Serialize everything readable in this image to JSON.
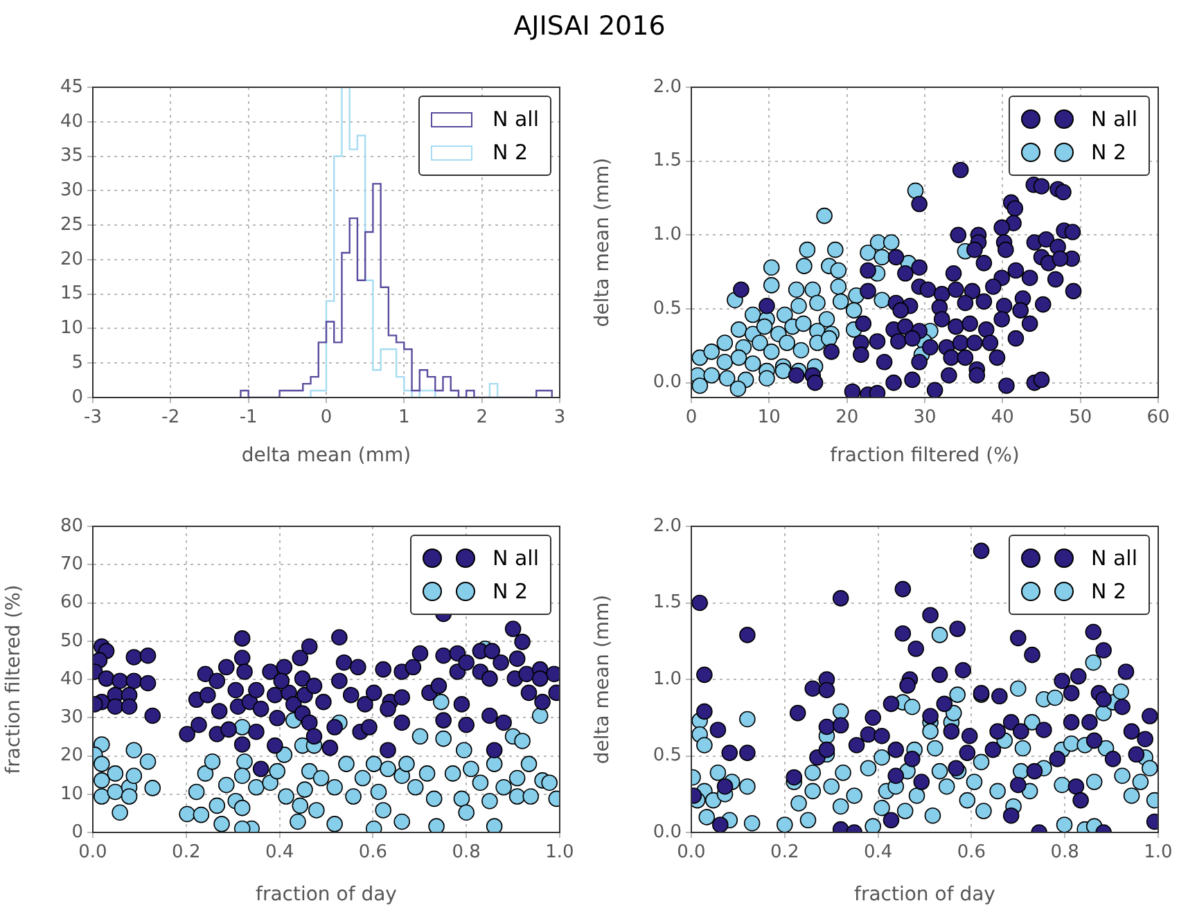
{
  "chart_data": [
    {
      "type": "histogram",
      "title": "AJISAI 2016",
      "xlabel": "delta mean (mm)",
      "xlim": [
        -3,
        3
      ],
      "xticks": [
        -3,
        -2,
        -1,
        0,
        1,
        2,
        3
      ],
      "ylim": [
        0,
        45
      ],
      "yticks": [
        0,
        5,
        10,
        15,
        20,
        25,
        30,
        35,
        40,
        45
      ],
      "grid": true,
      "legend": "top right",
      "bins": [
        -1.1,
        -1,
        -0.9,
        -0.8,
        -0.7,
        -0.6,
        -0.5,
        -0.4,
        -0.3,
        -0.2,
        -0.1,
        0,
        0.1,
        0.2,
        0.3,
        0.4,
        0.5,
        0.6,
        0.7,
        0.8,
        0.9,
        1,
        1.1,
        1.2,
        1.3,
        1.4,
        1.5,
        1.6,
        1.7,
        1.8,
        1.9,
        2,
        2.1,
        2.2,
        2.3,
        2.4,
        2.5,
        2.6,
        2.7,
        2.8,
        2.9
      ],
      "series": [
        {
          "name": "N all",
          "color": "#5b4b9e",
          "values": [
            1,
            0,
            0,
            0,
            0,
            1,
            1,
            1,
            2,
            3,
            8,
            11,
            8,
            21,
            26,
            17,
            24,
            31,
            16,
            9,
            8,
            7,
            1,
            4,
            3,
            1,
            3,
            1,
            0,
            1,
            0,
            0,
            0,
            0,
            0,
            0,
            0,
            0,
            1,
            1
          ]
        },
        {
          "name": "N 2",
          "color": "#a6dcf2",
          "values": [
            0,
            0,
            0,
            0,
            0,
            0,
            0,
            0,
            0,
            1,
            1,
            14,
            35,
            45,
            36,
            38,
            17,
            4,
            7,
            7,
            3,
            1,
            0,
            1,
            1,
            0,
            0,
            0,
            0,
            0,
            0,
            0,
            2,
            0,
            0,
            0,
            0,
            0,
            0,
            0
          ]
        }
      ]
    },
    {
      "type": "scatter",
      "xlabel": "fraction filtered (%)",
      "ylabel": "delta mean (mm)",
      "xlim": [
        0,
        60
      ],
      "xticks": [
        0,
        10,
        20,
        30,
        40,
        50,
        60
      ],
      "ylim": [
        -0.1,
        2.0
      ],
      "yticks": [
        {
          "value": 0,
          "label": "0.0"
        },
        {
          "value": 0.5,
          "label": "0.5"
        },
        {
          "value": 1,
          "label": "1.0"
        },
        {
          "value": 1.5,
          "label": "1.5"
        },
        {
          "value": 2,
          "label": "2.0"
        }
      ],
      "grid": true,
      "legend": "top right",
      "marker": "circle",
      "series": [
        {
          "name": "N all",
          "color": "#2c1f80",
          "x": [
            34.6,
            44.0,
            45.0,
            47.1,
            47.8,
            29.3,
            41.1,
            41.6,
            41.4,
            39.9,
            47.9,
            49.0,
            34.3,
            36.9,
            36.9,
            40.2,
            40.4,
            44.1,
            45.6,
            36.4,
            47.1,
            45.0,
            45.9,
            48.9,
            47.4,
            26.3,
            22.7,
            27.5,
            29.3,
            33.7,
            37.6,
            39.9,
            41.7,
            43.5,
            46.8,
            6.4,
            9.7,
            49.1,
            45.2,
            29.3,
            30.4,
            32.2,
            34.0,
            36.1,
            38.8,
            42.6,
            26.3,
            28.1,
            26.9,
            31.9,
            35.2,
            37.6,
            40.2,
            42.3,
            43.5,
            22.7,
            22.1,
            21.8,
            23.9,
            26.0,
            27.5,
            29.3,
            32.2,
            34.0,
            35.8,
            37.9,
            39.9,
            41.7,
            26.6,
            28.4,
            30.7,
            32.8,
            34.6,
            36.4,
            38.4,
            39.3,
            29.3,
            33.4,
            35.2,
            36.7,
            24.8,
            18.0,
            21.8,
            13.5,
            15.6,
            15.9,
            33.1,
            36.7,
            40.5,
            44.1,
            45.0,
            26.0,
            28.4,
            31.3,
            20.7,
            22.7,
            23.9
          ],
          "values": [
            1.44,
            1.34,
            1.33,
            1.31,
            1.29,
            1.21,
            1.22,
            1.18,
            1.08,
            1.05,
            1.03,
            1.02,
            1.0,
            1.0,
            0.95,
            0.95,
            0.9,
            0.95,
            0.97,
            0.9,
            0.92,
            0.85,
            0.81,
            0.84,
            0.84,
            0.85,
            0.76,
            0.74,
            0.78,
            0.74,
            0.81,
            0.71,
            0.76,
            0.71,
            0.7,
            0.63,
            0.52,
            0.62,
            0.53,
            0.65,
            0.63,
            0.6,
            0.63,
            0.62,
            0.65,
            0.57,
            0.54,
            0.52,
            0.49,
            0.51,
            0.54,
            0.55,
            0.52,
            0.49,
            0.4,
            0.62,
            0.4,
            0.27,
            0.28,
            0.36,
            0.38,
            0.35,
            0.43,
            0.38,
            0.4,
            0.36,
            0.43,
            0.3,
            0.28,
            0.3,
            0.24,
            0.24,
            0.27,
            0.27,
            0.27,
            0.17,
            0.14,
            0.17,
            0.17,
            0.09,
            0.14,
            0.21,
            0.19,
            0.05,
            0.05,
            0.0,
            0.05,
            0.05,
            -0.02,
            0.0,
            0.02,
            0.0,
            0.02,
            -0.05,
            -0.06,
            -0.08,
            -0.07
          ]
        },
        {
          "name": "N 2",
          "color": "#87ceeb",
          "x": [
            17.1,
            28.8,
            14.9,
            18.5,
            10.3,
            14.5,
            17.7,
            18.9,
            22.7,
            24.0,
            25.7,
            24.5,
            27.9,
            23.9,
            35.2,
            5.6,
            10.3,
            13.5,
            15.6,
            18.9,
            21.2,
            24.5,
            7.9,
            9.7,
            12.0,
            13.8,
            16.2,
            17.4,
            19.2,
            20.9,
            6.1,
            7.9,
            9.4,
            11.2,
            13.0,
            14.4,
            16.2,
            18.0,
            20.9,
            4.3,
            6.7,
            8.8,
            10.3,
            12.3,
            14.1,
            16.2,
            17.7,
            30.7,
            29.9,
            29.6,
            1.1,
            2.6,
            4.3,
            6.1,
            7.9,
            9.7,
            11.8,
            13.8,
            15.9,
            0.8,
            2.6,
            4.6,
            7.0,
            9.7,
            1.1,
            6.0,
            11.8
          ],
          "values": [
            1.13,
            1.3,
            0.9,
            0.9,
            0.78,
            0.79,
            0.79,
            0.76,
            0.88,
            0.95,
            0.95,
            0.85,
            0.81,
            0.74,
            0.89,
            0.56,
            0.66,
            0.63,
            0.63,
            0.65,
            0.59,
            0.56,
            0.46,
            0.43,
            0.46,
            0.52,
            0.54,
            0.43,
            0.55,
            0.49,
            0.36,
            0.33,
            0.38,
            0.33,
            0.38,
            0.4,
            0.35,
            0.33,
            0.36,
            0.27,
            0.24,
            0.27,
            0.21,
            0.27,
            0.22,
            0.27,
            0.3,
            0.35,
            0.28,
            0.19,
            0.17,
            0.21,
            0.14,
            0.17,
            0.13,
            0.08,
            0.11,
            0.08,
            0.11,
            0.05,
            0.05,
            0.03,
            0.02,
            0.03,
            -0.02,
            -0.04,
            0.08
          ]
        }
      ]
    },
    {
      "type": "scatter",
      "xlabel": "fraction of day",
      "ylabel": "fraction filtered (%)",
      "xlim": [
        0,
        1
      ],
      "xticks": [
        {
          "value": 0,
          "label": "0.0"
        },
        {
          "value": 0.2,
          "label": "0.2"
        },
        {
          "value": 0.4,
          "label": "0.4"
        },
        {
          "value": 0.6,
          "label": "0.6"
        },
        {
          "value": 0.8,
          "label": "0.8"
        },
        {
          "value": 1,
          "label": "1.0"
        }
      ],
      "ylim": [
        0,
        80
      ],
      "yticks": [
        0,
        10,
        20,
        30,
        40,
        50,
        60,
        70,
        80
      ],
      "grid": true,
      "legend": "top right",
      "marker": "circle",
      "series": [
        {
          "name": "N all",
          "color": "#2c1f80",
          "x": [
            0.019,
            0.029,
            0.014,
            0.004,
            0.029,
            0.058,
            0.088,
            0.118,
            0.088,
            0.118,
            0.019,
            0.048,
            0.078,
            0.048,
            0.078,
            0.004,
            0.128,
            0.202,
            0.222,
            0.227,
            0.241,
            0.246,
            0.266,
            0.271,
            0.266,
            0.286,
            0.291,
            0.32,
            0.32,
            0.325,
            0.311,
            0.306,
            0.336,
            0.35,
            0.36,
            0.35,
            0.32,
            0.36,
            0.38,
            0.39,
            0.41,
            0.42,
            0.404,
            0.43,
            0.444,
            0.464,
            0.449,
            0.454,
            0.474,
            0.449,
            0.464,
            0.395,
            0.474,
            0.494,
            0.518,
            0.39,
            0.508,
            0.528,
            0.538,
            0.568,
            0.528,
            0.553,
            0.583,
            0.573,
            0.592,
            0.602,
            0.622,
            0.662,
            0.686,
            0.637,
            0.662,
            0.632,
            0.662,
            0.632,
            0.701,
            0.721,
            0.741,
            0.751,
            0.751,
            0.781,
            0.751,
            0.79,
            0.8,
            0.781,
            0.8,
            0.83,
            0.855,
            0.83,
            0.85,
            0.874,
            0.9,
            0.92,
            0.909,
            0.904,
            0.85,
            0.88,
            0.86,
            0.929,
            0.958,
            0.988,
            0.934,
            0.963,
            0.993,
            0.958
          ],
          "values": [
            48.6,
            47.4,
            45,
            42,
            40.2,
            39.6,
            39.6,
            39,
            45.8,
            46.2,
            34.1,
            35.9,
            35.9,
            32.9,
            32.9,
            33.5,
            30.5,
            25.7,
            34.7,
            28.1,
            41.4,
            35.9,
            39.6,
            31.7,
            25.7,
            43.2,
            26.9,
            50.7,
            45.6,
            42,
            32.9,
            37.2,
            34.1,
            37.2,
            32.3,
            26.3,
            23,
            16.6,
            42,
            35.9,
            43.2,
            36.5,
            39.6,
            33.5,
            45.6,
            48.6,
            40.2,
            35.9,
            38.3,
            31.1,
            28.7,
            29.9,
            25.1,
            34.1,
            27.5,
            22.7,
            22.1,
            51,
            44.4,
            43.2,
            39.6,
            35.9,
            33.5,
            26.3,
            27.5,
            36.5,
            42.6,
            42,
            43.2,
            34.1,
            35.3,
            32.3,
            28.7,
            21.5,
            46.8,
            36.5,
            38.3,
            57.1,
            46.2,
            46.8,
            29.3,
            33.5,
            28.1,
            42,
            44.4,
            47.4,
            47.4,
            42,
            40.2,
            44.4,
            53.2,
            49.8,
            45.4,
            40.2,
            30.5,
            28.7,
            21.5,
            41.4,
            42.6,
            41.4,
            36.5,
            34.1,
            36.5,
            40.2
          ]
        },
        {
          "name": "N 2",
          "color": "#87ceeb",
          "x": [
            0.019,
            0.004,
            0.019,
            0.048,
            0.019,
            0.019,
            0.048,
            0.078,
            0.088,
            0.118,
            0.088,
            0.078,
            0.128,
            0.058,
            0.202,
            0.222,
            0.241,
            0.256,
            0.232,
            0.276,
            0.266,
            0.286,
            0.306,
            0.32,
            0.325,
            0.32,
            0.32,
            0.35,
            0.34,
            0.32,
            0.38,
            0.395,
            0.41,
            0.43,
            0.414,
            0.444,
            0.454,
            0.439,
            0.449,
            0.474,
            0.464,
            0.489,
            0.479,
            0.518,
            0.528,
            0.518,
            0.543,
            0.558,
            0.578,
            0.602,
            0.602,
            0.612,
            0.622,
            0.632,
            0.662,
            0.662,
            0.672,
            0.701,
            0.691,
            0.716,
            0.731,
            0.746,
            0.751,
            0.736,
            0.771,
            0.79,
            0.795,
            0.81,
            0.8,
            0.83,
            0.84,
            0.85,
            0.86,
            0.86,
            0.88,
            0.9,
            0.92,
            0.909,
            0.909,
            0.938,
            0.934,
            0.958,
            0.963,
            0.978,
            0.993
          ],
          "values": [
            23,
            20.3,
            17.9,
            15.4,
            13.6,
            9.4,
            10.6,
            11.8,
            21.5,
            18.5,
            14.8,
            9.4,
            11.6,
            5.2,
            4.8,
            10.6,
            15.4,
            18.5,
            4.6,
            2.2,
            7,
            12.4,
            8.2,
            27.5,
            18.5,
            14.8,
            6.4,
            11.8,
            1,
            1,
            13,
            16,
            20.3,
            29.3,
            9.4,
            7,
            11.2,
            2.8,
            22.7,
            22.7,
            16,
            14.2,
            5.8,
            2.2,
            28.7,
            11.8,
            17.9,
            9.4,
            14.2,
            1,
            17.9,
            10.6,
            5.8,
            16.6,
            14.8,
            2.8,
            17.9,
            25.1,
            11.8,
            15.4,
            8.8,
            34.1,
            24.5,
            1.6,
            15.4,
            8.8,
            21.5,
            16.6,
            5.2,
            13,
            48,
            8.2,
            17.9,
            1.6,
            11.8,
            25.1,
            23.9,
            14.2,
            9.4,
            9.4,
            17.9,
            30.5,
            13.6,
            13,
            8.8
          ]
        }
      ]
    },
    {
      "type": "scatter",
      "xlabel": "fraction of day",
      "ylabel": "delta mean (mm)",
      "xlim": [
        0,
        1
      ],
      "xticks": [
        {
          "value": 0,
          "label": "0.0"
        },
        {
          "value": 0.2,
          "label": "0.2"
        },
        {
          "value": 0.4,
          "label": "0.4"
        },
        {
          "value": 0.6,
          "label": "0.6"
        },
        {
          "value": 0.8,
          "label": "0.8"
        },
        {
          "value": 1,
          "label": "1.0"
        }
      ],
      "ylim": [
        0,
        2
      ],
      "yticks": [
        {
          "value": 0,
          "label": "0.0"
        },
        {
          "value": 0.5,
          "label": "0.5"
        },
        {
          "value": 1,
          "label": "1.0"
        },
        {
          "value": 1.5,
          "label": "1.5"
        },
        {
          "value": 2,
          "label": "2.0"
        }
      ],
      "grid": true,
      "legend": "top right",
      "marker": "circle",
      "series": [
        {
          "name": "N all",
          "color": "#2c1f80",
          "x": [
            0.018,
            0.028,
            0.028,
            0.057,
            0.082,
            0.062,
            0.005,
            0.12,
            0.12,
            0.072,
            0.228,
            0.22,
            0.26,
            0.29,
            0.29,
            0.29,
            0.32,
            0.32,
            0.27,
            0.29,
            0.354,
            0.379,
            0.389,
            0.408,
            0.32,
            0.349,
            0.428,
            0.453,
            0.453,
            0.468,
            0.463,
            0.481,
            0.438,
            0.473,
            0.438,
            0.428,
            0.493,
            0.512,
            0.532,
            0.542,
            0.512,
            0.57,
            0.582,
            0.557,
            0.596,
            0.591,
            0.567,
            0.621,
            0.621,
            0.66,
            0.646,
            0.656,
            0.685,
            0.7,
            0.73,
            0.706,
            0.735,
            0.7,
            0.685,
            0.745,
            0.755,
            0.794,
            0.814,
            0.784,
            0.824,
            0.829,
            0.814,
            0.853,
            0.861,
            0.883,
            0.873,
            0.883,
            0.923,
            0.931,
            0.863,
            0.943,
            0.972,
            0.982,
            0.992,
            0.903,
            0.953,
            0.883,
            0.834
          ],
          "values": [
            1.5,
            1.03,
            0.79,
            0.67,
            0.52,
            0.05,
            0.24,
            1.29,
            0.52,
            0.3,
            0.78,
            0.36,
            0.94,
            1.0,
            0.93,
            0.69,
            1.53,
            0.7,
            0.49,
            0.54,
            0.57,
            0.64,
            0.75,
            0.63,
            0.02,
            0.0,
            0.84,
            1.59,
            1.3,
            1.0,
            0.96,
            1.2,
            0.54,
            0.48,
            0.37,
            0.08,
            0.33,
            1.42,
            1.03,
            0.84,
            0.76,
            1.33,
            1.06,
            0.66,
            0.63,
            0.52,
            0.42,
            1.84,
            0.91,
            0.89,
            0.54,
            0.66,
            0.72,
            1.27,
            1.16,
            0.66,
            0.4,
            0.31,
            0.11,
            0.0,
            0.67,
            0.99,
            0.91,
            0.48,
            0.3,
            1.02,
            0.72,
            0.72,
            1.31,
            1.19,
            0.91,
            0.87,
            0.82,
            1.05,
            0.6,
            0.66,
            0.61,
            0.76,
            0.07,
            0.48,
            0.51,
            0.0,
            0.21
          ]
        },
        {
          "name": "N 2",
          "color": "#87ceeb",
          "x": [
            0.018,
            0.018,
            0.028,
            0.003,
            0.028,
            0.013,
            0.047,
            0.057,
            0.087,
            0.072,
            0.033,
            0.082,
            0.12,
            0.12,
            0.13,
            0.2,
            0.22,
            0.23,
            0.26,
            0.26,
            0.29,
            0.29,
            0.32,
            0.3,
            0.325,
            0.32,
            0.25,
            0.349,
            0.379,
            0.389,
            0.408,
            0.418,
            0.408,
            0.453,
            0.473,
            0.438,
            0.463,
            0.478,
            0.458,
            0.483,
            0.512,
            0.512,
            0.532,
            0.522,
            0.517,
            0.557,
            0.562,
            0.57,
            0.532,
            0.547,
            0.572,
            0.591,
            0.606,
            0.621,
            0.621,
            0.626,
            0.656,
            0.671,
            0.7,
            0.706,
            0.69,
            0.73,
            0.725,
            0.71,
            0.755,
            0.779,
            0.755,
            0.794,
            0.794,
            0.799,
            0.814,
            0.843,
            0.843,
            0.861,
            0.863,
            0.863,
            0.883,
            0.903,
            0.92,
            0.888,
            0.923,
            0.943,
            0.962,
            0.972,
            0.982,
            0.992
          ],
          "values": [
            0.73,
            0.64,
            0.57,
            0.36,
            0.27,
            0.21,
            0.21,
            0.39,
            0.33,
            0.25,
            0.1,
            0.08,
            0.74,
            0.3,
            0.06,
            0.05,
            0.33,
            0.19,
            0.39,
            0.27,
            0.51,
            0.63,
            0.79,
            0.3,
            0.39,
            0.17,
            0.08,
            0.24,
            0.42,
            0.04,
            0.49,
            0.27,
            0.16,
            0.85,
            0.82,
            0.3,
            0.4,
            0.54,
            0.14,
            0.24,
            0.72,
            0.66,
            1.29,
            0.55,
            0.11,
            0.72,
            0.78,
            0.9,
            0.4,
            0.3,
            0.4,
            0.21,
            0.33,
            0.9,
            0.46,
            0.14,
            0.27,
            0.6,
            0.94,
            0.4,
            0.17,
            0.72,
            0.27,
            0.55,
            0.87,
            0.88,
            0.42,
            0.54,
            0.31,
            0.05,
            0.58,
            0.57,
            0.02,
            1.11,
            0.04,
            0.33,
            0.78,
            0.85,
            0.92,
            0.55,
            0.37,
            0.24,
            0.33,
            0.49,
            0.42,
            0.21
          ]
        }
      ]
    }
  ]
}
